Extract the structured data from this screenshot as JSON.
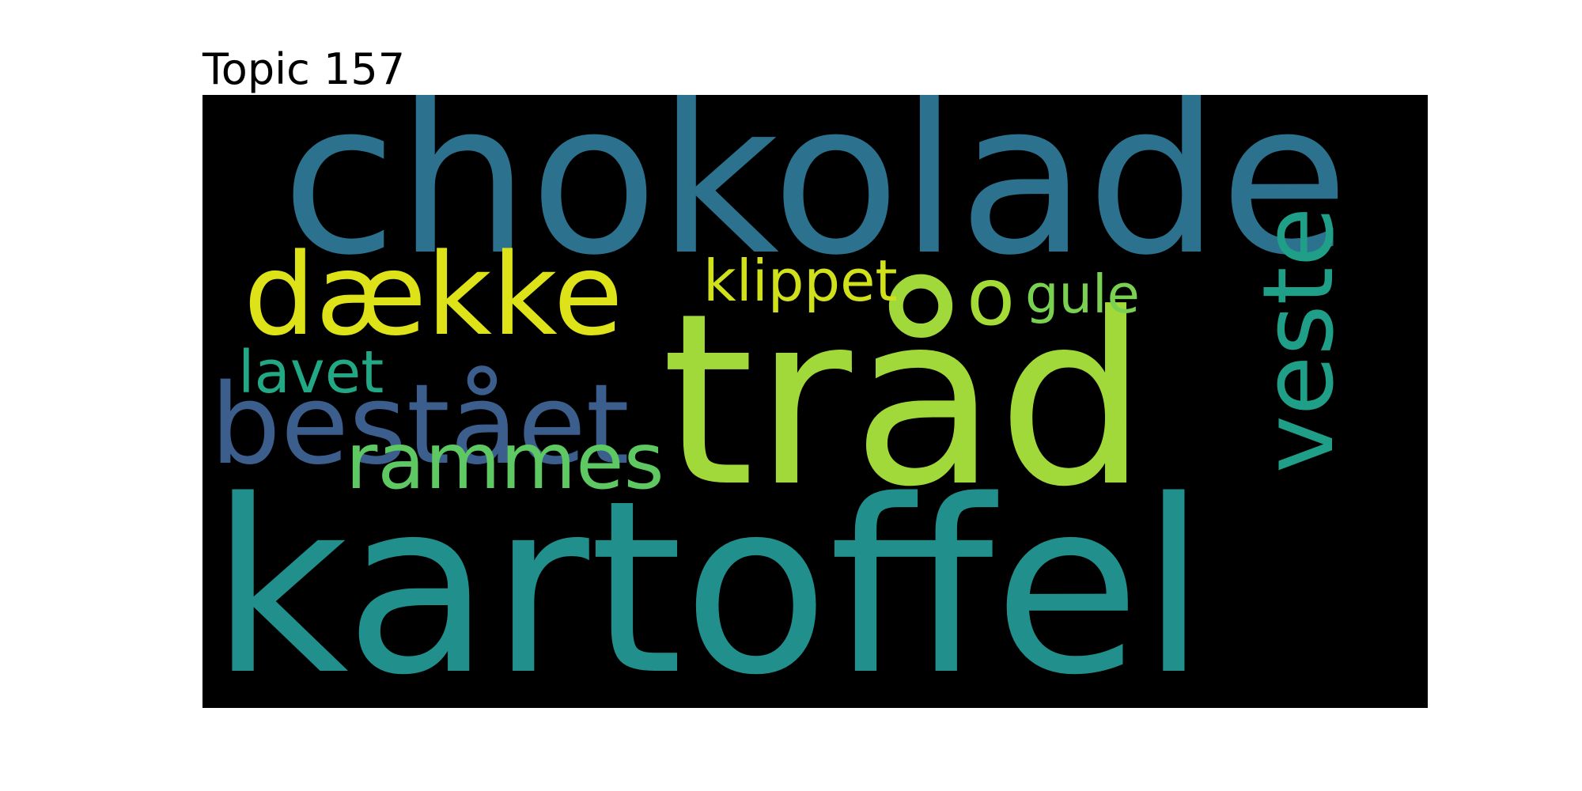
{
  "chart_data": {
    "type": "wordcloud",
    "title": "Topic 157",
    "background": "#000000",
    "words": [
      {
        "text": "tråd",
        "weight": 1.0,
        "color": "#a2d93a"
      },
      {
        "text": "kartoffel",
        "weight": 0.97,
        "color": "#21908d"
      },
      {
        "text": "chokolade",
        "weight": 0.88,
        "color": "#2c728e"
      },
      {
        "text": "veste",
        "weight": 0.48,
        "color": "#1f9f88"
      },
      {
        "text": "dække",
        "weight": 0.48,
        "color": "#dde318"
      },
      {
        "text": "bestået",
        "weight": 0.43,
        "color": "#3b5e8c"
      },
      {
        "text": "o",
        "weight": 0.33,
        "color": "#a5db36"
      },
      {
        "text": "rammes",
        "weight": 0.33,
        "color": "#5ec962"
      },
      {
        "text": "klippet",
        "weight": 0.3,
        "color": "#d0e11c"
      },
      {
        "text": "gule",
        "weight": 0.28,
        "color": "#7ad151"
      },
      {
        "text": "lavet",
        "weight": 0.27,
        "color": "#22a884"
      }
    ]
  }
}
